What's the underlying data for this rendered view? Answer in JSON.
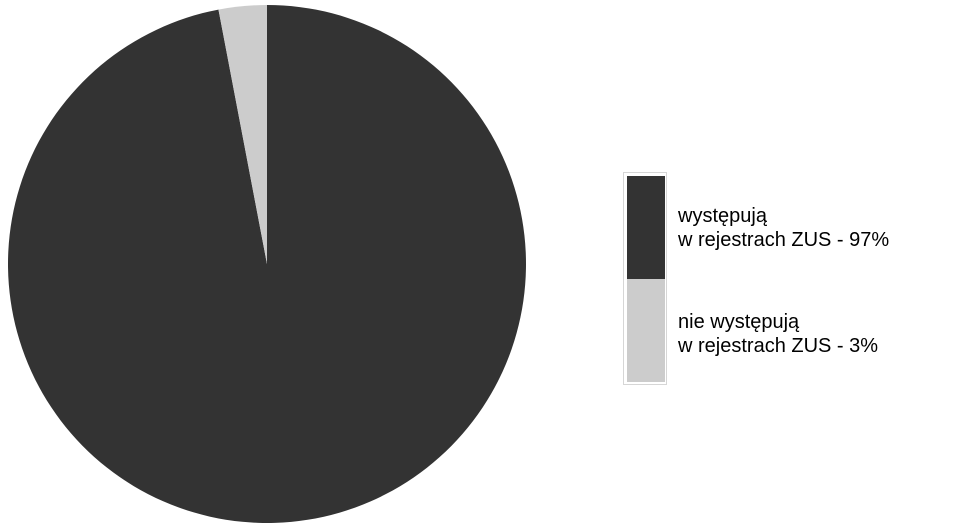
{
  "chart_data": {
    "type": "pie",
    "title": "",
    "slices": [
      {
        "label_line1": "występują",
        "label_line2": "w rejestrach ZUS - 97%",
        "value": 97,
        "color": "#333333"
      },
      {
        "label_line1": "nie występują",
        "label_line2": "w rejestrach ZUS - 3%",
        "value": 3,
        "color": "#cccccc"
      }
    ],
    "legend_position": "right"
  }
}
